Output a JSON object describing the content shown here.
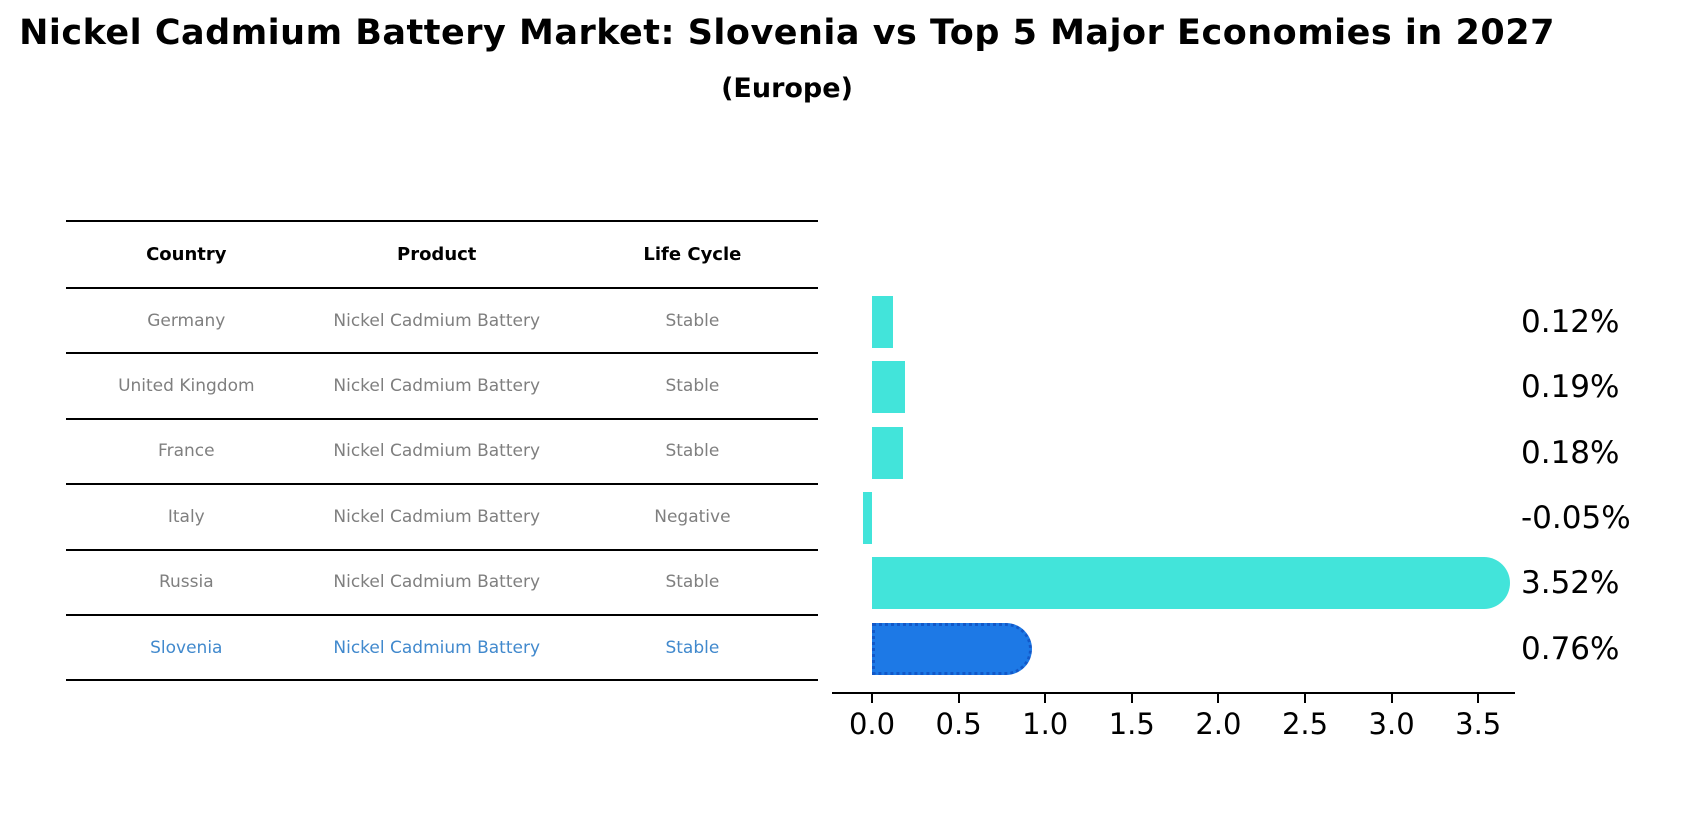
{
  "header": {
    "title": "Nickel Cadmium Battery Market: Slovenia vs Top 5 Major Economies in 2027",
    "subtitle": "(Europe)"
  },
  "table": {
    "columns": [
      "Country",
      "Product",
      "Life Cycle"
    ],
    "rows": [
      {
        "country": "Germany",
        "product": "Nickel Cadmium Battery",
        "life_cycle": "Stable",
        "value_label": "0.12%"
      },
      {
        "country": "United Kingdom",
        "product": "Nickel Cadmium Battery",
        "life_cycle": "Stable",
        "value_label": "0.19%"
      },
      {
        "country": "France",
        "product": "Nickel Cadmium Battery",
        "life_cycle": "Stable",
        "value_label": "0.18%"
      },
      {
        "country": "Italy",
        "product": "Nickel Cadmium Battery",
        "life_cycle": "Negative",
        "value_label": "-0.05%"
      },
      {
        "country": "Russia",
        "product": "Nickel Cadmium Battery",
        "life_cycle": "Stable",
        "value_label": "3.52%"
      },
      {
        "country": "Slovenia",
        "product": "Nickel Cadmium Battery",
        "life_cycle": "Stable",
        "value_label": "0.76%"
      }
    ]
  },
  "chart_data": {
    "type": "bar",
    "orientation": "horizontal",
    "title": "Nickel Cadmium Battery Market: Slovenia vs Top 5 Major Economies in 2027 (Europe)",
    "categories": [
      "Germany",
      "United Kingdom",
      "France",
      "Italy",
      "Russia",
      "Slovenia"
    ],
    "values": [
      0.12,
      0.19,
      0.18,
      -0.05,
      3.52,
      0.76
    ],
    "value_labels": [
      "0.12%",
      "0.19%",
      "0.18%",
      "-0.05%",
      "3.52%",
      "0.76%"
    ],
    "xticks": [
      "0.0",
      "0.5",
      "1.0",
      "1.5",
      "2.0",
      "2.5",
      "3.0",
      "3.5"
    ],
    "xlim": [
      -0.23,
      3.71
    ],
    "grid": false,
    "legend": false,
    "highlight_index": 5,
    "colors": {
      "bar": "#42e4da",
      "highlight_bar": "#1d79e6",
      "highlight_border": "#1258c8"
    }
  },
  "colors": {
    "row_text": "#7f7f7f",
    "highlight_text": "#4189cd",
    "axis": "#000000"
  }
}
